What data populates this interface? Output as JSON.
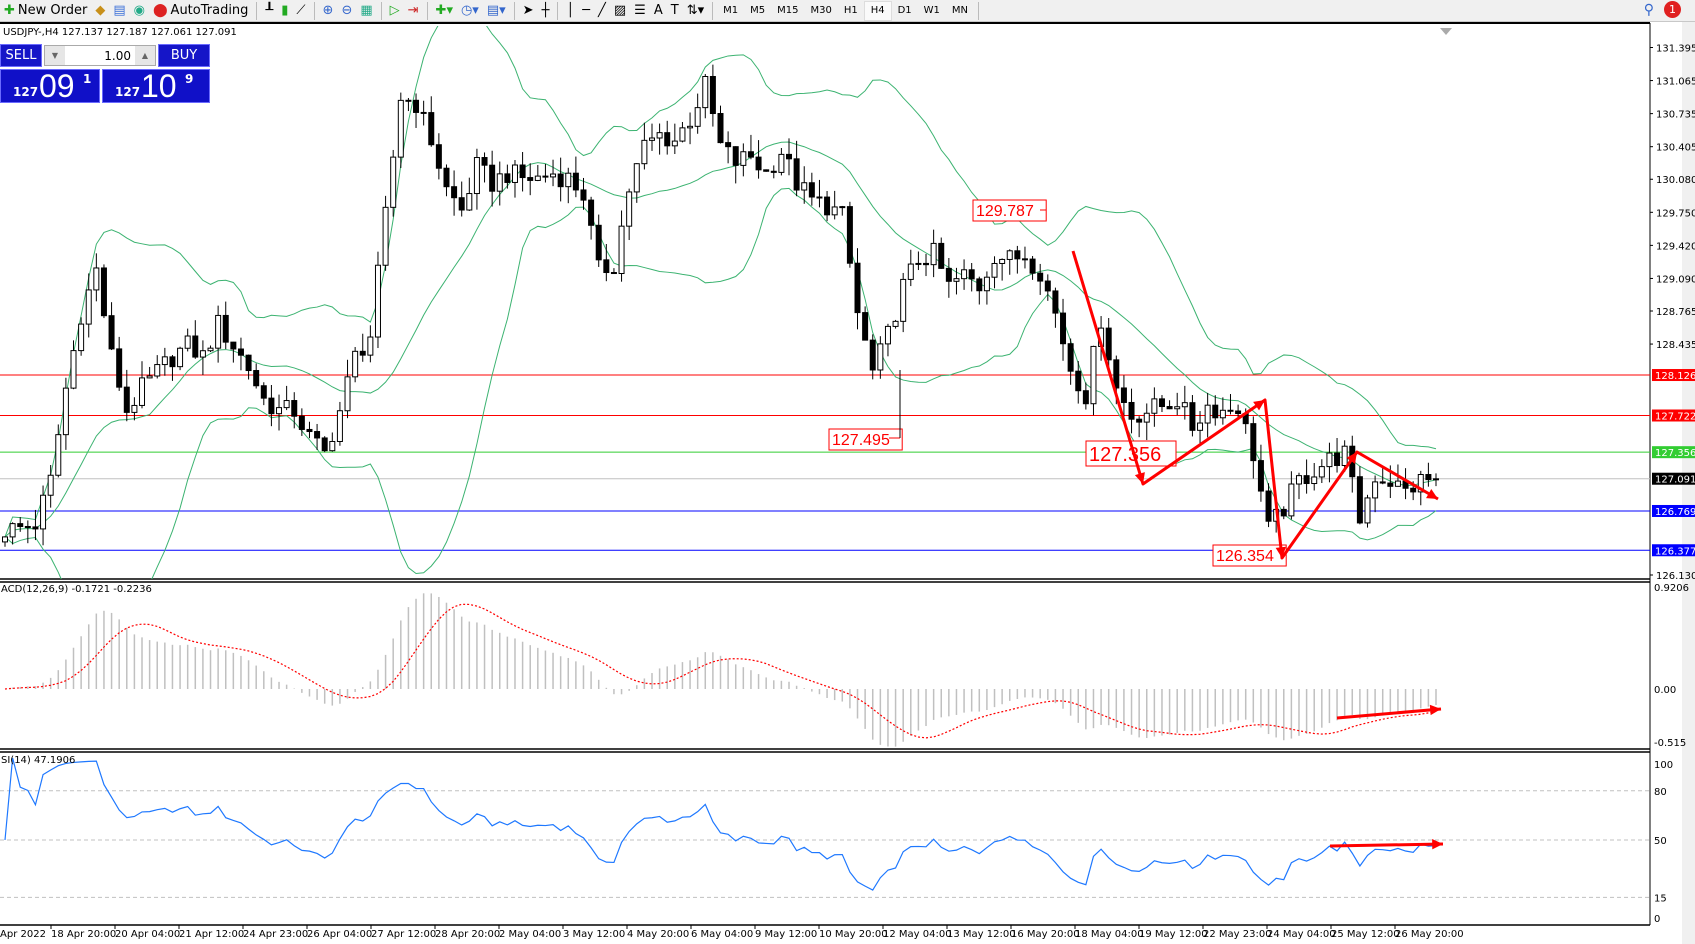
{
  "toolbar": {
    "new_order": "New Order",
    "autotrading": "AutoTrading",
    "timeframes": [
      "M1",
      "M5",
      "M15",
      "M30",
      "H1",
      "H4",
      "D1",
      "W1",
      "MN"
    ],
    "active_timeframe": "H4",
    "notification_count": "1"
  },
  "chart": {
    "symbol_line": "USDJPY-,H4  127.137 127.187 127.061 127.091",
    "trade_panel": {
      "sell_label": "SELL",
      "buy_label": "BUY",
      "lot": "1.00",
      "sell_big": "127",
      "sell_main": "09",
      "sell_sup": "1",
      "buy_big": "127",
      "buy_main": "10",
      "buy_sup": "9"
    },
    "price_axis": [
      "131.395",
      "131.065",
      "130.735",
      "130.405",
      "130.080",
      "129.750",
      "129.420",
      "129.090",
      "128.765",
      "128.435",
      "126.130"
    ],
    "levels": [
      {
        "price": 128.126,
        "label": "128.126",
        "color": "#ff0000"
      },
      {
        "price": 127.722,
        "label": "127.722",
        "color": "#ff0000"
      },
      {
        "price": 127.356,
        "label": "127.356",
        "color": "#32cd32"
      },
      {
        "price": 127.091,
        "label": "127.091",
        "color": "#000000",
        "line_color": "#c0c0c0"
      },
      {
        "price": 126.769,
        "label": "126.769",
        "color": "#0000ff"
      },
      {
        "price": 126.377,
        "label": "126.377",
        "color": "#0000ff"
      }
    ],
    "annotations": [
      "129.787",
      "127.495",
      "127.356",
      "126.354"
    ],
    "price_path": [
      126.58,
      126.6,
      126.64,
      127.07,
      127.99,
      128.74,
      129.17,
      128.31,
      127.77,
      127.99,
      128.15,
      128.31,
      128.42,
      128.31,
      128.63,
      128.42,
      128.2,
      127.88,
      127.77,
      127.77,
      127.5,
      127.34,
      127.77,
      128.31,
      128.52,
      129.71,
      130.9,
      130.84,
      130.47,
      129.98,
      129.77,
      130.2,
      130.04,
      130.14,
      130.09,
      130.09,
      130.14,
      130.09,
      129.93,
      129.17,
      129.23,
      129.98,
      130.41,
      130.52,
      130.47,
      130.68,
      131.01,
      130.41,
      130.25,
      130.31,
      130.14,
      130.36,
      130.04,
      129.87,
      129.82,
      129.71,
      128.74,
      128.15,
      128.52,
      129.01,
      129.28,
      129.33,
      129.01,
      129.12,
      129.01,
      129.33,
      129.28,
      129.33,
      129.17,
      128.74,
      128.2,
      127.93,
      128.69,
      127.99,
      127.72,
      127.77,
      127.82,
      127.88,
      127.61,
      127.82,
      127.77,
      127.82,
      127.34,
      126.58,
      126.8,
      127.07,
      127.18,
      127.28,
      127.34,
      126.69,
      127.12,
      127.07,
      126.96,
      127.07,
      127.09
    ],
    "colors": {
      "bands": "#3cb371",
      "bull_fill": "#ffffff",
      "bear_fill": "#000000",
      "arrow": "#ff0000"
    }
  },
  "macd": {
    "title": "ACD(12,26,9) -0.1721 -0.2236",
    "axis": [
      "0.9206",
      "0.00",
      "-0.515"
    ],
    "histogram_color": "#c0c0c0",
    "signal_color": "#ff0000"
  },
  "rsi": {
    "title": "SI(14) 47.1906",
    "axis": [
      "100",
      "80",
      "50",
      "15",
      "0"
    ],
    "line_color": "#1e78ff"
  },
  "time_axis": [
    "Apr 2022",
    "18 Apr 20:00",
    "20 Apr 04:00",
    "21 Apr 12:00",
    "24 Apr 23:00",
    "26 Apr 04:00",
    "27 Apr 12:00",
    "28 Apr 20:00",
    "2 May 04:00",
    "3 May 12:00",
    "4 May 20:00",
    "6 May 04:00",
    "9 May 12:00",
    "10 May 20:00",
    "12 May 04:00",
    "13 May 12:00",
    "16 May 20:00",
    "18 May 04:00",
    "19 May 12:00",
    "22 May 23:00",
    "24 May 04:00",
    "25 May 12:00",
    "26 May 20:00"
  ]
}
